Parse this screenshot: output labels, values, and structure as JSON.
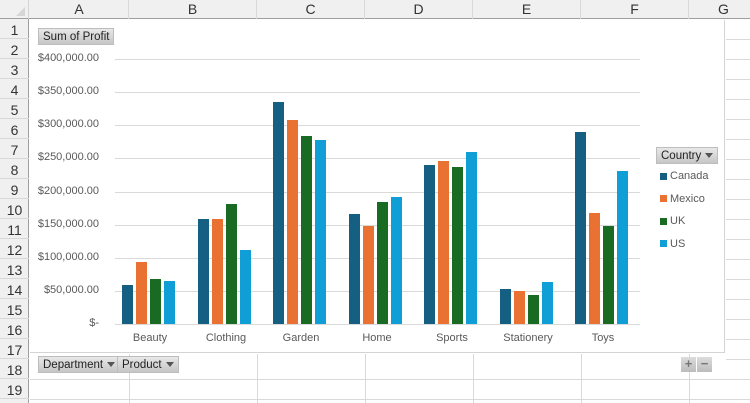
{
  "sheet": {
    "columns": [
      "A",
      "B",
      "C",
      "D",
      "E",
      "F",
      "G"
    ],
    "rows": [
      "1",
      "2",
      "3",
      "4",
      "5",
      "6",
      "7",
      "8",
      "9",
      "10",
      "11",
      "12",
      "13",
      "14",
      "15",
      "16",
      "17",
      "18",
      "19"
    ]
  },
  "pivot_chart": {
    "value_field_button": "Sum of Profit",
    "axis_field_buttons": [
      "Department",
      "Product"
    ],
    "legend_field_button": "Country",
    "expand_button": "+",
    "collapse_button": "−"
  },
  "chart_data": {
    "type": "bar",
    "title": "",
    "xlabel": "",
    "ylabel": "Sum of Profit",
    "ylim": [
      0,
      400000
    ],
    "y_ticks": [
      "$400,000.00",
      "$350,000.00",
      "$300,000.00",
      "$250,000.00",
      "$200,000.00",
      "$150,000.00",
      "$100,000.00",
      "$50,000.00",
      "$-"
    ],
    "grid": true,
    "legend_position": "right",
    "legend_title": "Country",
    "categories": [
      "Beauty",
      "Clothing",
      "Garden",
      "Home",
      "Sports",
      "Stationery",
      "Toys"
    ],
    "series": [
      {
        "name": "Canada",
        "color": "#156082",
        "values": [
          59000,
          158000,
          335000,
          166000,
          240000,
          53000,
          290000
        ]
      },
      {
        "name": "Mexico",
        "color": "#E97132",
        "values": [
          94000,
          158000,
          308000,
          148000,
          246000,
          50000,
          168000
        ]
      },
      {
        "name": "UK",
        "color": "#196B24",
        "values": [
          68000,
          181000,
          284000,
          184000,
          237000,
          44000,
          148000
        ]
      },
      {
        "name": "US",
        "color": "#0F9ED5",
        "values": [
          65000,
          112000,
          278000,
          192000,
          260000,
          63000,
          231000
        ]
      }
    ]
  }
}
